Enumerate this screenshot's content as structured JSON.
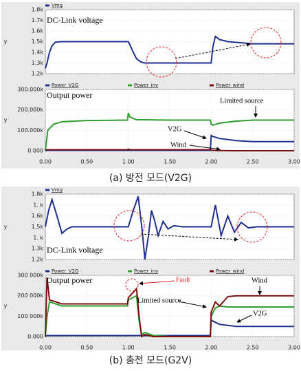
{
  "captions": [
    "(a) 방전 모드(V2G)",
    "(b) 충전 모드(G2V)"
  ],
  "chart_data": [
    {
      "type": "line",
      "ylabel": "y",
      "annotations": [
        "DC-Link voltage"
      ],
      "xlim": [
        0,
        3
      ],
      "ylim": [
        1200,
        1800
      ],
      "yticks": [
        {
          "value": 1200,
          "label": "1.2k"
        },
        {
          "value": 1300,
          "label": "1.3k"
        },
        {
          "value": 1400,
          "label": "1.4k"
        },
        {
          "value": 1500,
          "label": "1.5k"
        },
        {
          "value": 1600,
          "label": "1.6k"
        },
        {
          "value": 1700,
          "label": "1.7k"
        },
        {
          "value": 1800,
          "label": "1.8k"
        }
      ],
      "x": [
        0,
        0.02,
        0.05,
        0.08,
        0.12,
        0.2,
        1.0,
        1.02,
        1.06,
        1.1,
        1.15,
        1.2,
        2.0,
        2.02,
        2.05,
        2.1,
        2.2,
        2.5,
        3.0
      ],
      "series": [
        {
          "name": "Vmg",
          "color": "#1f2f8f",
          "values": [
            1250,
            1300,
            1400,
            1460,
            1495,
            1500,
            1500,
            1470,
            1400,
            1340,
            1310,
            1300,
            1300,
            1450,
            1550,
            1520,
            1500,
            1480,
            1480
          ]
        }
      ]
    },
    {
      "type": "line",
      "ylabel": "y",
      "annotations": [
        "Output power",
        "Limited source",
        "V2G",
        "Wind"
      ],
      "xlim": [
        0,
        3
      ],
      "ylim": [
        0,
        300000
      ],
      "yticks": [
        {
          "value": 0,
          "label": "0.000"
        },
        {
          "value": 100000,
          "label": "100.000k"
        },
        {
          "value": 200000,
          "label": "200.000k"
        },
        {
          "value": 300000,
          "label": "300.000k"
        }
      ],
      "xticks": [
        {
          "value": 0,
          "label": "0.00"
        },
        {
          "value": 0.5,
          "label": "0.50"
        },
        {
          "value": 1,
          "label": "1.00"
        },
        {
          "value": 1.5,
          "label": "1.50"
        },
        {
          "value": 2,
          "label": "2.00"
        },
        {
          "value": 2.5,
          "label": "2.50"
        },
        {
          "value": 3,
          "label": "3.00"
        }
      ],
      "x": [
        0,
        0.03,
        0.1,
        0.2,
        0.5,
        0.99,
        1.0,
        1.02,
        1.1,
        1.5,
        1.99,
        2.0,
        2.02,
        2.1,
        2.3,
        2.5,
        3.0
      ],
      "series": [
        {
          "name": "Power_V2G",
          "color": "#1f2f8f",
          "values": [
            0,
            2000,
            2000,
            2000,
            2000,
            2000,
            2000,
            2000,
            2000,
            2000,
            2000,
            75000,
            70000,
            60000,
            50000,
            45000,
            45000
          ]
        },
        {
          "name": "Power_inv",
          "color": "#2e9e2e",
          "values": [
            0,
            100000,
            130000,
            142000,
            148000,
            150000,
            185000,
            165000,
            152000,
            150000,
            150000,
            130000,
            125000,
            135000,
            145000,
            150000,
            150000
          ]
        },
        {
          "name": "Power_wind",
          "color": "#7a1010",
          "values": [
            5000,
            5000,
            5000,
            5000,
            5000,
            5000,
            8000,
            5000,
            5000,
            5000,
            5000,
            3000,
            2000,
            1000,
            0,
            0,
            0
          ]
        }
      ]
    },
    {
      "type": "line",
      "ylabel": "y",
      "annotations": [
        "DC-Link voltage"
      ],
      "xlim": [
        0,
        3
      ],
      "ylim": [
        1200,
        1800
      ],
      "yticks": [
        {
          "value": 1200,
          "label": "1.2k"
        },
        {
          "value": 1300,
          "label": "1.3k"
        },
        {
          "value": 1400,
          "label": "1. k"
        },
        {
          "value": 1500,
          "label": "1.5k"
        },
        {
          "value": 1600,
          "label": "1.6k"
        },
        {
          "value": 1700,
          "label": "1. k"
        },
        {
          "value": 1800,
          "label": "1.8k"
        }
      ],
      "x": [
        0,
        0.04,
        0.08,
        0.14,
        0.2,
        0.26,
        0.32,
        1.0,
        1.06,
        1.12,
        1.17,
        1.2,
        1.24,
        1.28,
        1.32,
        1.36,
        1.42,
        1.48,
        1.55,
        1.65,
        2.0,
        2.05,
        2.12,
        2.2,
        2.28,
        2.36,
        2.45,
        2.55,
        3.0
      ],
      "series": [
        {
          "name": "Vmg",
          "color": "#1f2f8f",
          "values": [
            1500,
            1650,
            1750,
            1600,
            1440,
            1480,
            1500,
            1500,
            1650,
            1780,
            1450,
            1200,
            1400,
            1650,
            1550,
            1420,
            1550,
            1480,
            1510,
            1500,
            1500,
            1700,
            1420,
            1600,
            1450,
            1540,
            1490,
            1500,
            1500
          ]
        }
      ]
    },
    {
      "type": "line",
      "ylabel": "y",
      "annotations": [
        "Output power",
        "Fault",
        "Wind",
        "Limited source",
        "V2G"
      ],
      "xlim": [
        0,
        3
      ],
      "ylim": [
        0,
        300000
      ],
      "yticks": [
        {
          "value": 0,
          "label": "0.000"
        },
        {
          "value": 100000,
          "label": "100 000k"
        },
        {
          "value": 200000,
          "label": "200 000k"
        },
        {
          "value": 300000,
          "label": "300 000k"
        }
      ],
      "xticks": [
        {
          "value": 0,
          "label": "0.00"
        },
        {
          "value": 0.5,
          "label": "0.50"
        },
        {
          "value": 1,
          "label": "1.00"
        },
        {
          "value": 1.5,
          "label": "1.50"
        },
        {
          "value": 2,
          "label": "2.00"
        },
        {
          "value": 2.5,
          "label": "2.50"
        },
        {
          "value": 3,
          "label": "3.00"
        }
      ],
      "x": [
        0,
        0.02,
        0.05,
        0.2,
        0.5,
        0.99,
        1.0,
        1.1,
        1.13,
        1.16,
        1.2,
        1.3,
        1.5,
        1.99,
        2.0,
        2.05,
        2.1,
        2.2,
        2.3,
        3.0
      ],
      "series": [
        {
          "name": "Power_V2G",
          "color": "#1f2f8f",
          "values": [
            0,
            5000,
            5000,
            5000,
            5000,
            5000,
            5000,
            5000,
            5000,
            5000,
            5000,
            5000,
            5000,
            5000,
            80000,
            70000,
            60000,
            55000,
            50000,
            50000
          ]
        },
        {
          "name": "Power_inv",
          "color": "#2e9e2e",
          "values": [
            0,
            100000,
            170000,
            150000,
            150000,
            150000,
            180000,
            200000,
            80000,
            10000,
            20000,
            5000,
            0,
            0,
            100000,
            140000,
            150000,
            145000,
            145000,
            145000
          ]
        },
        {
          "name": "Power_wind",
          "color": "#7a1010",
          "values": [
            0,
            290000,
            180000,
            160000,
            160000,
            160000,
            190000,
            235000,
            100000,
            0,
            10000,
            0,
            0,
            0,
            120000,
            170000,
            150000,
            195000,
            200000,
            200000
          ]
        }
      ]
    }
  ]
}
